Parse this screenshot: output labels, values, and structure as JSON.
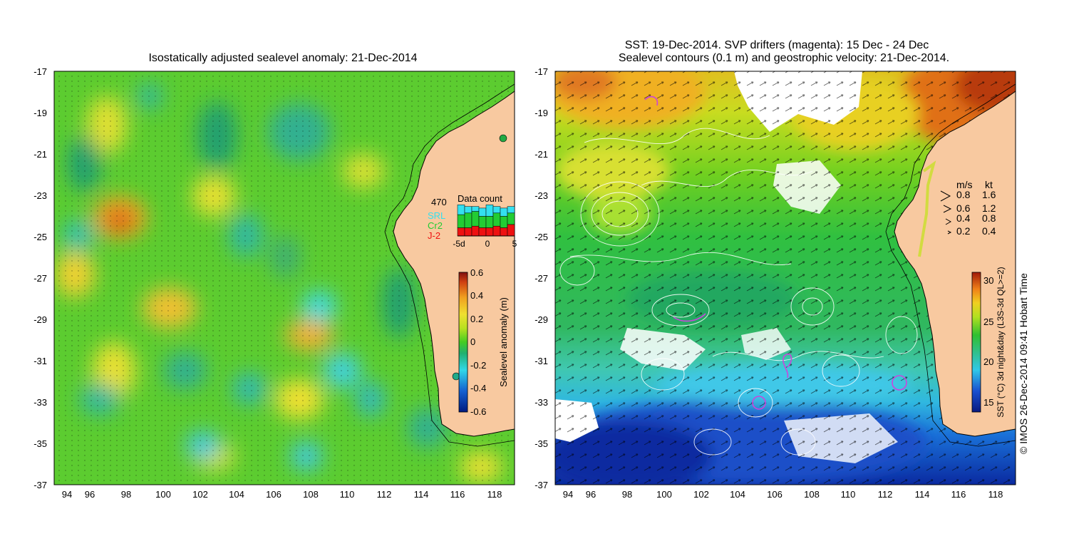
{
  "left_panel": {
    "title": "Isostatically adjusted sealevel anomaly: 21-Dec-2014",
    "y_ticks": [
      "-17",
      "-19",
      "-21",
      "-23",
      "-25",
      "-27",
      "-29",
      "-31",
      "-33",
      "-35",
      "-37"
    ],
    "x_ticks": [
      "94",
      "96",
      "98",
      "100",
      "102",
      "104",
      "106",
      "108",
      "110",
      "112",
      "114",
      "116",
      "118"
    ],
    "colorbar": {
      "label": "Sealevel anomaly (m)",
      "ticks": [
        "0.6",
        "0.4",
        "0.2",
        "0",
        "-0.2",
        "-0.4",
        "-0.6"
      ],
      "range": [
        -0.6,
        0.6
      ]
    },
    "data_count": {
      "title": "Data count",
      "max": "470",
      "x_ticks": [
        "-5d",
        "0",
        "5"
      ],
      "legend": [
        {
          "label": "SRL",
          "color": "#33e0f0"
        },
        {
          "label": "Cr2",
          "color": "#22cc33"
        },
        {
          "label": "J-2",
          "color": "#ee1111"
        }
      ],
      "bars": [
        {
          "srl": 0.3,
          "cr2": 0.4,
          "j2": 0.25
        },
        {
          "srl": 0.2,
          "cr2": 0.45,
          "j2": 0.25
        },
        {
          "srl": 0.15,
          "cr2": 0.45,
          "j2": 0.3
        },
        {
          "srl": 0.25,
          "cr2": 0.35,
          "j2": 0.25
        },
        {
          "srl": 0.35,
          "cr2": 0.35,
          "j2": 0.25
        },
        {
          "srl": 0.2,
          "cr2": 0.4,
          "j2": 0.3
        },
        {
          "srl": 0.25,
          "cr2": 0.35,
          "j2": 0.25
        },
        {
          "srl": 0.2,
          "cr2": 0.35,
          "j2": 0.35
        }
      ]
    }
  },
  "right_panel": {
    "title_line1": "SST: 19-Dec-2014. SVP drifters (magenta): 15 Dec - 24 Dec",
    "title_line2": "Sealevel contours (0.1 m) and geostrophic velocity: 21-Dec-2014.",
    "y_ticks": [
      "-17",
      "-19",
      "-21",
      "-23",
      "-25",
      "-27",
      "-29",
      "-31",
      "-33",
      "-35",
      "-37"
    ],
    "x_ticks": [
      "94",
      "96",
      "98",
      "100",
      "102",
      "104",
      "106",
      "108",
      "110",
      "112",
      "114",
      "116",
      "118"
    ],
    "velocity_legend": {
      "header_ms": "m/s",
      "header_kt": "kt",
      "rows": [
        {
          "ms": "0.8",
          "kt": "1.6"
        },
        {
          "ms": "0.6",
          "kt": "1.2"
        },
        {
          "ms": "0.4",
          "kt": "0.8"
        },
        {
          "ms": "0.2",
          "kt": "0.4"
        }
      ]
    },
    "colorbar": {
      "label": "SST (°C) 3d night&day (L3S-3d QL>=2)",
      "ticks": [
        "30",
        "25",
        "20",
        "15"
      ],
      "range": [
        13,
        31
      ]
    },
    "credit": "© IMOS 26-Dec-2014 09:41 Hobart Time"
  },
  "colors": {
    "land": "#f8c9a0",
    "coast": "#000000",
    "contour": "#ffffff",
    "drifter": "#cc44dd"
  }
}
